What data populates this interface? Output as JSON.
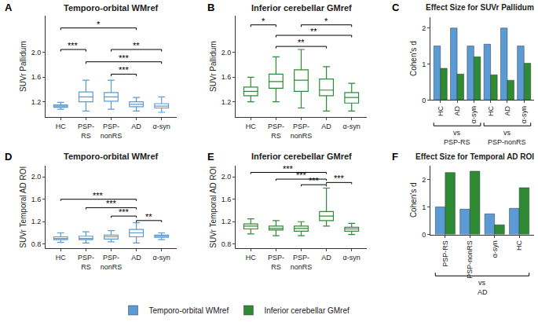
{
  "chart_data": [
    {
      "label": "A",
      "type": "box",
      "title": "Temporo-orbital WMref",
      "y_label": "SUVr Pallidum",
      "color": "#5b9bd5",
      "categories": [
        "HC",
        "PSP-RS",
        "PSP-nonRS",
        "AD",
        "α-syn"
      ],
      "q1": [
        1.11,
        1.2,
        1.21,
        1.12,
        1.1
      ],
      "median": [
        1.13,
        1.28,
        1.28,
        1.16,
        1.13
      ],
      "q3": [
        1.15,
        1.36,
        1.35,
        1.2,
        1.17
      ],
      "lower": [
        1.08,
        1.05,
        1.08,
        1.05,
        1.03
      ],
      "upper": [
        1.19,
        1.55,
        1.55,
        1.27,
        1.28
      ],
      "ylim": [
        0.95,
        2.6
      ],
      "yticks": [
        1.2,
        1.6,
        {
          "value": 2,
          "label": "2.0"
        }
      ],
      "comparisons": [
        {
          "from": "HC",
          "to": "AD",
          "y": 2.4,
          "label": "*"
        },
        {
          "from": "HC",
          "to": "PSP-RS",
          "y": 2.05,
          "label": "***"
        },
        {
          "from": "PSP-nonRS",
          "to": "α-syn",
          "y": 2.05,
          "label": "**"
        },
        {
          "from": "PSP-RS",
          "to": "α-syn",
          "y": 1.85,
          "label": "***"
        },
        {
          "from": "PSP-nonRS",
          "to": "AD",
          "y": 1.65,
          "label": "***"
        }
      ]
    },
    {
      "label": "B",
      "type": "box",
      "title": "Inferior cerebellar GMref",
      "y_label": "SUVr Pallidum",
      "color": "#2e8b34",
      "categories": [
        "HC",
        "PSP-RS",
        "PSP-nonRS",
        "AD",
        "α-syn"
      ],
      "q1": [
        1.3,
        1.42,
        1.37,
        1.3,
        1.18
      ],
      "median": [
        1.37,
        1.53,
        1.55,
        1.39,
        1.27
      ],
      "q3": [
        1.44,
        1.65,
        1.72,
        1.57,
        1.35
      ],
      "lower": [
        1.2,
        1.2,
        1.1,
        1.05,
        1.05
      ],
      "upper": [
        1.6,
        1.93,
        2.05,
        1.77,
        1.5
      ],
      "ylim": [
        0.95,
        2.6
      ],
      "yticks": [
        1.2,
        1.6,
        {
          "value": 2,
          "label": "2.0"
        }
      ],
      "comparisons": [
        {
          "from": "HC",
          "to": "PSP-RS",
          "y": 2.45,
          "label": "*"
        },
        {
          "from": "PSP-nonRS",
          "to": "α-syn",
          "y": 2.45,
          "label": "*"
        },
        {
          "from": "PSP-RS",
          "to": "α-syn",
          "y": 2.28,
          "label": "**"
        },
        {
          "from": "PSP-RS",
          "to": "AD",
          "y": 2.1,
          "label": "**"
        }
      ]
    },
    {
      "label": "C",
      "type": "bar",
      "title": "Effect Size for SUVr Pallidum",
      "y_label": "Cohen's d",
      "categories": [
        "HC",
        "AD",
        "α-syn",
        "HC",
        "AD",
        "α-syn"
      ],
      "groups": [
        {
          "text": [
            "vs",
            "PSP-RS"
          ],
          "from": 0,
          "to": 2
        },
        {
          "text": [
            "vs",
            "PSP-nonRS"
          ],
          "from": 3,
          "to": 5
        }
      ],
      "series": [
        {
          "name": "Temporo-orbital WMref",
          "color": "#5b9bd5",
          "values": [
            1.5,
            2.0,
            1.5,
            1.55,
            2.0,
            1.5
          ]
        },
        {
          "name": "Inferior cerebellar GMref",
          "color": "#2e8b34",
          "values": [
            0.88,
            0.72,
            1.2,
            0.7,
            0.55,
            1.02
          ]
        }
      ],
      "ylim": [
        0,
        2.3
      ],
      "yticks": [
        0,
        1,
        2
      ],
      "legend": "bottom"
    },
    {
      "label": "D",
      "type": "box",
      "title": "Temporo-orbital WMref",
      "y_label": "SUVr Temporal AD ROI",
      "color": "#5b9bd5",
      "categories": [
        "HC",
        "PSP-RS",
        "PSP-nonRS",
        "AD",
        "α-syn"
      ],
      "q1": [
        0.88,
        0.88,
        0.89,
        0.93,
        0.92
      ],
      "median": [
        0.9,
        0.9,
        0.93,
        1.0,
        0.94
      ],
      "q3": [
        0.93,
        0.94,
        0.96,
        1.06,
        0.96
      ],
      "lower": [
        0.83,
        0.82,
        0.84,
        0.82,
        0.88
      ],
      "upper": [
        1.0,
        1.02,
        1.04,
        1.18,
        1.0
      ],
      "ylim": [
        0.72,
        2.2
      ],
      "yticks": [
        0.8,
        1.2,
        1.6,
        {
          "value": 2,
          "label": "2.0"
        }
      ],
      "comparisons": [
        {
          "from": "HC",
          "to": "AD",
          "y": 1.6,
          "label": "***"
        },
        {
          "from": "PSP-RS",
          "to": "AD",
          "y": 1.45,
          "label": "***"
        },
        {
          "from": "PSP-nonRS",
          "to": "AD",
          "y": 1.3,
          "label": "***"
        },
        {
          "from": "AD",
          "to": "α-syn",
          "y": 1.22,
          "label": "**"
        }
      ]
    },
    {
      "label": "E",
      "type": "box",
      "title": "Inferior cerebellar GMref",
      "y_label": "SUVr Temporal AD ROI",
      "color": "#2e8b34",
      "categories": [
        "HC",
        "PSP-RS",
        "PSP-nonRS",
        "AD",
        "α-syn"
      ],
      "q1": [
        1.07,
        1.05,
        1.03,
        1.22,
        1.03
      ],
      "median": [
        1.12,
        1.08,
        1.08,
        1.3,
        1.07
      ],
      "q3": [
        1.16,
        1.12,
        1.12,
        1.38,
        1.1
      ],
      "lower": [
        0.98,
        0.95,
        0.95,
        1.12,
        0.97
      ],
      "upper": [
        1.25,
        1.22,
        1.2,
        1.8,
        1.17
      ],
      "ylim": [
        0.72,
        2.2
      ],
      "yticks": [
        0.8,
        1.2,
        1.6,
        {
          "value": 2,
          "label": "2.0"
        }
      ],
      "comparisons": [
        {
          "from": "HC",
          "to": "AD",
          "y": 2.08,
          "label": "***"
        },
        {
          "from": "PSP-RS",
          "to": "AD",
          "y": 1.96,
          "label": "***"
        },
        {
          "from": "PSP-nonRS",
          "to": "AD",
          "y": 1.86,
          "label": "***"
        },
        {
          "from": "AD",
          "to": "α-syn",
          "y": 1.9,
          "label": "***"
        }
      ]
    },
    {
      "label": "F",
      "type": "bar",
      "title": "Effect Size for Temporal AD ROI",
      "y_label": "Cohen's d",
      "categories": [
        "PSP-RS",
        "PSP-nonRS",
        "α-syn",
        "HC"
      ],
      "groups": [
        {
          "text": [
            "vs",
            "AD"
          ],
          "from": 0,
          "to": 3
        }
      ],
      "series": [
        {
          "name": "Temporo-orbital WMref",
          "color": "#5b9bd5",
          "values": [
            1.0,
            0.92,
            0.75,
            0.95
          ]
        },
        {
          "name": "Inferior cerebellar GMref",
          "color": "#2e8b34",
          "values": [
            2.25,
            2.3,
            0.35,
            1.7
          ]
        }
      ],
      "ylim": [
        0,
        2.5
      ],
      "yticks": [
        0,
        1,
        2
      ]
    }
  ]
}
